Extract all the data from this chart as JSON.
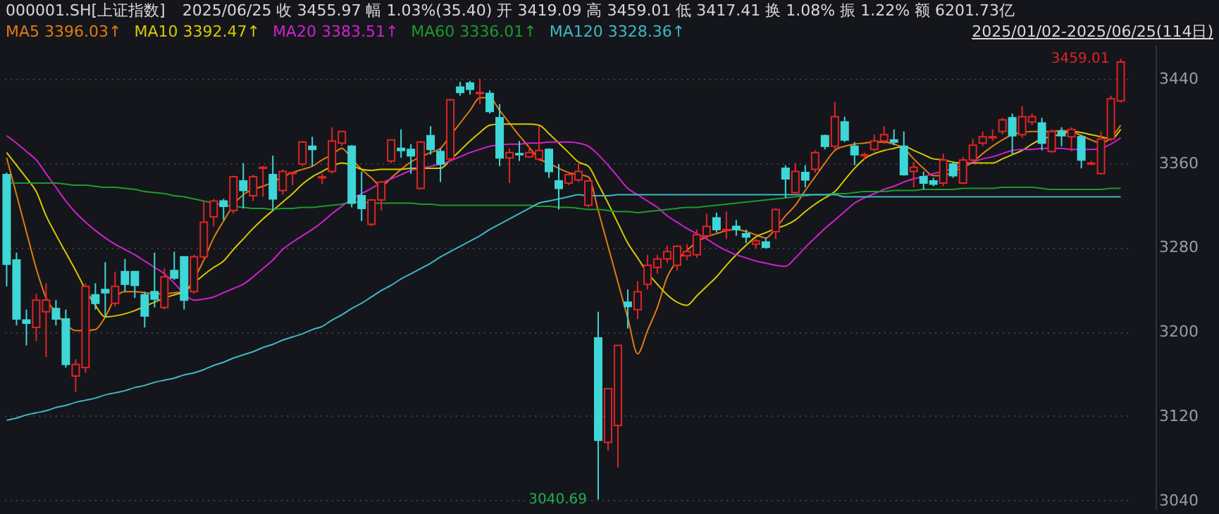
{
  "chart_data": {
    "type": "candlestick",
    "title": "000001.SH[上证指数]",
    "subtitle": "2025/06/25 收 3455.97 幅 1.03%(35.40) 开 3419.09 高 3459.01 低 3417.41 换 1.08% 振 1.22% 额 6201.73亿",
    "categories": [
      null,
      null,
      null,
      null,
      null,
      null,
      null,
      null,
      null,
      null,
      null,
      null,
      null,
      null,
      null,
      null,
      null,
      null,
      null,
      null,
      null,
      null,
      null,
      null,
      null,
      null,
      null,
      null,
      null,
      null,
      null,
      null,
      null,
      null,
      null,
      null,
      null,
      null,
      null,
      null,
      null,
      null,
      null,
      null,
      null,
      null,
      null,
      null,
      null,
      null,
      null,
      null,
      null,
      null,
      null,
      null,
      null,
      null,
      null,
      null,
      null,
      null,
      null,
      null,
      null,
      null,
      null,
      null,
      null,
      null,
      null,
      null,
      null,
      null,
      null,
      null,
      null,
      null,
      null,
      null,
      null,
      null,
      null,
      null,
      null,
      null,
      null,
      null,
      null,
      null,
      null,
      null,
      null,
      null,
      null,
      null,
      null,
      null,
      null,
      null,
      null,
      null,
      null,
      null,
      null,
      null,
      null,
      null,
      null,
      null,
      null,
      null,
      null,
      null
    ],
    "ohlc": [
      [
        3349,
        3351,
        3243,
        3264
      ],
      [
        3268,
        3275,
        3206,
        3212
      ],
      [
        3211,
        3221,
        3187,
        3208
      ],
      [
        3204,
        3236,
        3191,
        3230
      ],
      [
        3219,
        3246,
        3176,
        3230
      ],
      [
        3222,
        3230,
        3206,
        3212
      ],
      [
        3212,
        3221,
        3166,
        3169
      ],
      [
        3158,
        3174,
        3143,
        3169
      ],
      [
        3166,
        3246,
        3161,
        3243
      ],
      [
        3235,
        3246,
        3221,
        3227
      ],
      [
        3240,
        3266,
        3214,
        3237
      ],
      [
        3227,
        3257,
        3224,
        3243
      ],
      [
        3257,
        3269,
        3238,
        3245
      ],
      [
        3257,
        3257,
        3232,
        3244
      ],
      [
        3235,
        3238,
        3204,
        3215
      ],
      [
        3238,
        3275,
        3223,
        3231
      ],
      [
        3223,
        3260,
        3221,
        3252
      ],
      [
        3258,
        3276,
        3249,
        3251
      ],
      [
        3271,
        3271,
        3221,
        3230
      ],
      [
        3238,
        3273,
        3236,
        3271
      ],
      [
        3271,
        3324,
        3268,
        3304
      ],
      [
        3309,
        3326,
        3300,
        3324
      ],
      [
        3324,
        3326,
        3306,
        3319
      ],
      [
        3315,
        3348,
        3312,
        3347
      ],
      [
        3343,
        3360,
        3317,
        3334
      ],
      [
        3329,
        3349,
        3324,
        3347
      ],
      [
        3355,
        3357,
        3328,
        3356
      ],
      [
        3349,
        3367,
        3315,
        3326
      ],
      [
        3334,
        3354,
        3330,
        3352
      ],
      [
        3350,
        3352,
        3339,
        3351
      ],
      [
        3359,
        3381,
        3357,
        3380
      ],
      [
        3376,
        3385,
        3357,
        3373
      ],
      [
        3346,
        3350,
        3340,
        3347
      ],
      [
        3352,
        3394,
        3350,
        3381
      ],
      [
        3379,
        3390,
        3376,
        3390
      ],
      [
        3376,
        3377,
        3318,
        3322
      ],
      [
        3329,
        3352,
        3305,
        3317
      ],
      [
        3302,
        3326,
        3300,
        3325
      ],
      [
        3325,
        3343,
        3315,
        3342
      ],
      [
        3362,
        3382,
        3360,
        3382
      ],
      [
        3374,
        3392,
        3365,
        3372
      ],
      [
        3373,
        3378,
        3350,
        3367
      ],
      [
        3336,
        3381,
        3335,
        3380
      ],
      [
        3386,
        3395,
        3368,
        3373
      ],
      [
        3371,
        3374,
        3342,
        3359
      ],
      [
        3364,
        3421,
        3362,
        3420
      ],
      [
        3432,
        3437,
        3424,
        3427
      ],
      [
        3436,
        3438,
        3425,
        3430
      ],
      [
        3426,
        3440,
        3416,
        3427
      ],
      [
        3426,
        3429,
        3407,
        3409
      ],
      [
        3403,
        3416,
        3357,
        3365
      ],
      [
        3365,
        3374,
        3341,
        3370
      ],
      [
        3369,
        3381,
        3362,
        3368
      ],
      [
        3366,
        3376,
        3365,
        3370
      ],
      [
        3364,
        3395,
        3362,
        3372
      ],
      [
        3373,
        3374,
        3346,
        3352
      ],
      [
        3343,
        3359,
        3316,
        3336
      ],
      [
        3341,
        3352,
        3339,
        3349
      ],
      [
        3344,
        3361,
        3342,
        3352
      ],
      [
        3320,
        3344,
        3318,
        3343
      ],
      [
        3194,
        3219,
        3040.69,
        3097
      ],
      [
        3095,
        3146,
        3087,
        3146
      ],
      [
        3111,
        3187,
        3071,
        3187
      ],
      [
        3228,
        3240,
        3203,
        3224
      ],
      [
        3221,
        3248,
        3212,
        3238
      ],
      [
        3245,
        3273,
        3240,
        3263
      ],
      [
        3261,
        3273,
        3255,
        3269
      ],
      [
        3269,
        3282,
        3265,
        3276
      ],
      [
        3263,
        3282,
        3258,
        3281
      ],
      [
        3272,
        3283,
        3268,
        3276
      ],
      [
        3273,
        3297,
        3270,
        3292
      ],
      [
        3291,
        3312,
        3287,
        3300
      ],
      [
        3308,
        3313,
        3294,
        3297
      ],
      [
        3296,
        3314,
        3288,
        3297
      ],
      [
        3300,
        3306,
        3291,
        3297
      ],
      [
        3293,
        3297,
        3284,
        3290
      ],
      [
        3283,
        3288,
        3279,
        3286
      ],
      [
        3285,
        3289,
        3279,
        3280
      ],
      [
        3295,
        3317,
        3288,
        3316
      ],
      [
        3355,
        3358,
        3327,
        3345
      ],
      [
        3332,
        3360,
        3330,
        3352
      ],
      [
        3351,
        3358,
        3337,
        3344
      ],
      [
        3354,
        3372,
        3351,
        3370
      ],
      [
        3386,
        3387,
        3373,
        3376
      ],
      [
        3376,
        3418,
        3373,
        3404
      ],
      [
        3399,
        3404,
        3380,
        3382
      ],
      [
        3376,
        3380,
        3358,
        3368
      ],
      [
        3367,
        3370,
        3363,
        3368
      ],
      [
        3373,
        3387,
        3371,
        3381
      ],
      [
        3381,
        3395,
        3378,
        3387
      ],
      [
        3382,
        3392,
        3377,
        3380
      ],
      [
        3376,
        3390,
        3348,
        3349
      ],
      [
        3352,
        3361,
        3337,
        3356
      ],
      [
        3347,
        3352,
        3335,
        3341
      ],
      [
        3343,
        3346,
        3338,
        3340
      ],
      [
        3341,
        3369,
        3338,
        3363
      ],
      [
        3359,
        3361,
        3346,
        3348
      ],
      [
        3341,
        3366,
        3340,
        3363
      ],
      [
        3363,
        3383,
        3361,
        3377
      ],
      [
        3379,
        3390,
        3376,
        3385
      ],
      [
        3384,
        3392,
        3381,
        3385
      ],
      [
        3390,
        3403,
        3387,
        3401
      ],
      [
        3403,
        3407,
        3368,
        3386
      ],
      [
        3387,
        3414,
        3384,
        3404
      ],
      [
        3399,
        3407,
        3396,
        3404
      ],
      [
        3398,
        3403,
        3372,
        3379
      ],
      [
        3371,
        3392,
        3370,
        3390
      ],
      [
        3390,
        3394,
        3376,
        3386
      ],
      [
        3385,
        3394,
        3371,
        3392
      ],
      [
        3385,
        3387,
        3355,
        3363
      ],
      [
        3359,
        3362,
        3358,
        3360
      ],
      [
        3350,
        3390,
        3349,
        3383
      ],
      [
        3383,
        3424,
        3381,
        3421
      ],
      [
        3419.09,
        3459.01,
        3417.41,
        3455.97
      ]
    ],
    "series": [
      {
        "name": "MA5 3396.03↑",
        "type": "line",
        "color": "#e07b12",
        "values": [
          3365,
          3330,
          3295,
          3260,
          3232,
          3218,
          3207,
          3201,
          3201,
          3202,
          3214,
          3232,
          3238,
          3238,
          3237,
          3236,
          3236,
          3237,
          3238,
          3250,
          3268,
          3289,
          3305,
          3320,
          3330,
          3335,
          3338,
          3342,
          3347,
          3351,
          3354,
          3357,
          3363,
          3368,
          3374,
          3364,
          3354,
          3346,
          3338,
          3346,
          3354,
          3361,
          3366,
          3370,
          3374,
          3386,
          3398,
          3410,
          3422,
          3422,
          3410,
          3398,
          3386,
          3375,
          3364,
          3360,
          3355,
          3351,
          3349,
          3347,
          3315,
          3281,
          3247,
          3213,
          3179,
          3201,
          3223,
          3252,
          3267,
          3277,
          3285,
          3290,
          3293,
          3296,
          3297,
          3295,
          3292,
          3289,
          3298,
          3310,
          3320,
          3334,
          3347,
          3360,
          3372,
          3376,
          3378,
          3379,
          3380,
          3380,
          3378,
          3374,
          3364,
          3355,
          3348,
          3348,
          3352,
          3356,
          3361,
          3369,
          3376,
          3382,
          3387,
          3389,
          3390,
          3390,
          3390,
          3391,
          3390,
          3386,
          3382,
          3379,
          3384,
          3396
        ]
      },
      {
        "name": "MA10 3392.47↑",
        "type": "line",
        "color": "#d8c800",
        "values": [
          3370,
          3358,
          3346,
          3333,
          3310,
          3292,
          3275,
          3258,
          3240,
          3225,
          3214,
          3215,
          3217,
          3220,
          3224,
          3228,
          3232,
          3235,
          3238,
          3246,
          3254,
          3261,
          3267,
          3278,
          3288,
          3298,
          3307,
          3315,
          3323,
          3331,
          3340,
          3347,
          3352,
          3357,
          3360,
          3358,
          3354,
          3353,
          3354,
          3354,
          3354,
          3355,
          3355,
          3355,
          3355,
          3363,
          3372,
          3381,
          3389,
          3396,
          3397,
          3397,
          3397,
          3397,
          3396,
          3388,
          3379,
          3370,
          3361,
          3357,
          3340,
          3322,
          3303,
          3284,
          3270,
          3256,
          3245,
          3235,
          3228,
          3225,
          3234,
          3243,
          3252,
          3263,
          3273,
          3282,
          3290,
          3294,
          3298,
          3301,
          3306,
          3314,
          3321,
          3327,
          3333,
          3344,
          3355,
          3364,
          3369,
          3372,
          3374,
          3376,
          3372,
          3368,
          3364,
          3363,
          3361,
          3360,
          3360,
          3360,
          3360,
          3364,
          3368,
          3372,
          3378,
          3383,
          3385,
          3388,
          3390,
          3389,
          3387,
          3385,
          3383,
          3392
        ]
      },
      {
        "name": "MA20 3383.51↑",
        "type": "line",
        "color": "#d020d0",
        "values": [
          3386,
          3379,
          3371,
          3363,
          3350,
          3337,
          3324,
          3313,
          3304,
          3296,
          3289,
          3283,
          3278,
          3273,
          3267,
          3261,
          3255,
          3246,
          3236,
          3230,
          3231,
          3233,
          3237,
          3241,
          3245,
          3252,
          3260,
          3268,
          3278,
          3285,
          3291,
          3297,
          3304,
          3312,
          3319,
          3326,
          3331,
          3336,
          3341,
          3345,
          3349,
          3353,
          3355,
          3357,
          3359,
          3362,
          3366,
          3370,
          3373,
          3376,
          3377,
          3378,
          3378,
          3379,
          3379,
          3380,
          3380,
          3380,
          3379,
          3376,
          3368,
          3358,
          3347,
          3336,
          3330,
          3324,
          3318,
          3310,
          3304,
          3298,
          3293,
          3288,
          3282,
          3277,
          3273,
          3270,
          3267,
          3265,
          3263,
          3262,
          3270,
          3280,
          3289,
          3298,
          3306,
          3314,
          3322,
          3327,
          3331,
          3335,
          3338,
          3342,
          3345,
          3347,
          3350,
          3352,
          3355,
          3358,
          3361,
          3364,
          3366,
          3369,
          3372,
          3373,
          3373,
          3374,
          3374,
          3374,
          3373,
          3373,
          3373,
          3374,
          3378,
          3384
        ]
      },
      {
        "name": "MA60 3336.01↑",
        "type": "line",
        "color": "#1e9a2a",
        "values": [
          3341,
          3341,
          3341,
          3341,
          3341,
          3341,
          3340,
          3339,
          3339,
          3338,
          3337,
          3337,
          3336,
          3335,
          3333,
          3332,
          3331,
          3329,
          3328,
          3326,
          3324,
          3322,
          3320,
          3319,
          3318,
          3317,
          3317,
          3316,
          3317,
          3317,
          3318,
          3318,
          3319,
          3320,
          3321,
          3323,
          3323,
          3322,
          3322,
          3322,
          3322,
          3322,
          3321,
          3321,
          3320,
          3320,
          3320,
          3320,
          3320,
          3320,
          3320,
          3320,
          3320,
          3320,
          3319,
          3319,
          3318,
          3318,
          3317,
          3316,
          3316,
          3315,
          3314,
          3314,
          3313,
          3314,
          3315,
          3316,
          3317,
          3318,
          3318,
          3319,
          3320,
          3321,
          3322,
          3323,
          3324,
          3325,
          3326,
          3327,
          3328,
          3329,
          3330,
          3330,
          3331,
          3331,
          3332,
          3333,
          3333,
          3333,
          3334,
          3334,
          3334,
          3335,
          3335,
          3335,
          3335,
          3336,
          3336,
          3336,
          3336,
          3337,
          3337,
          3337,
          3337,
          3336,
          3335,
          3335,
          3335,
          3335,
          3335,
          3335,
          3336,
          3336
        ]
      },
      {
        "name": "MA120 3328.36↑",
        "type": "line",
        "color": "#3fb8c4",
        "values": [
          3116,
          3118,
          3121,
          3123,
          3125,
          3128,
          3130,
          3133,
          3135,
          3137,
          3140,
          3142,
          3144,
          3147,
          3149,
          3152,
          3154,
          3156,
          3159,
          3161,
          3164,
          3168,
          3171,
          3175,
          3178,
          3181,
          3185,
          3188,
          3192,
          3195,
          3198,
          3202,
          3205,
          3211,
          3216,
          3222,
          3227,
          3233,
          3239,
          3244,
          3250,
          3255,
          3260,
          3265,
          3271,
          3276,
          3281,
          3286,
          3291,
          3297,
          3302,
          3307,
          3312,
          3317,
          3322,
          3324,
          3326,
          3328,
          3330,
          3329,
          3329,
          3329,
          3330,
          3330,
          3330,
          3330,
          3330,
          3330,
          3330,
          3330,
          3330,
          3330,
          3330,
          3330,
          3330,
          3330,
          3330,
          3330,
          3330,
          3330,
          3330,
          3330,
          3330,
          3330,
          3330,
          3328,
          3328,
          3328,
          3328,
          3328,
          3328,
          3328,
          3328,
          3328,
          3328,
          3328,
          3328,
          3328,
          3328,
          3328,
          3328,
          3328,
          3328,
          3328,
          3328,
          3328,
          3328,
          3328,
          3328,
          3328,
          3328,
          3328,
          3328,
          3328
        ]
      }
    ],
    "ylim": [
      3031,
      3472
    ],
    "yticks": [
      3040,
      3120,
      3200,
      3280,
      3360,
      3440
    ],
    "grid": "y",
    "legend": "top left",
    "tick_labels": "y",
    "annotations": [
      "2025/01/02-2025/06/25(114日)",
      "3459.01",
      "3040.69"
    ]
  }
}
